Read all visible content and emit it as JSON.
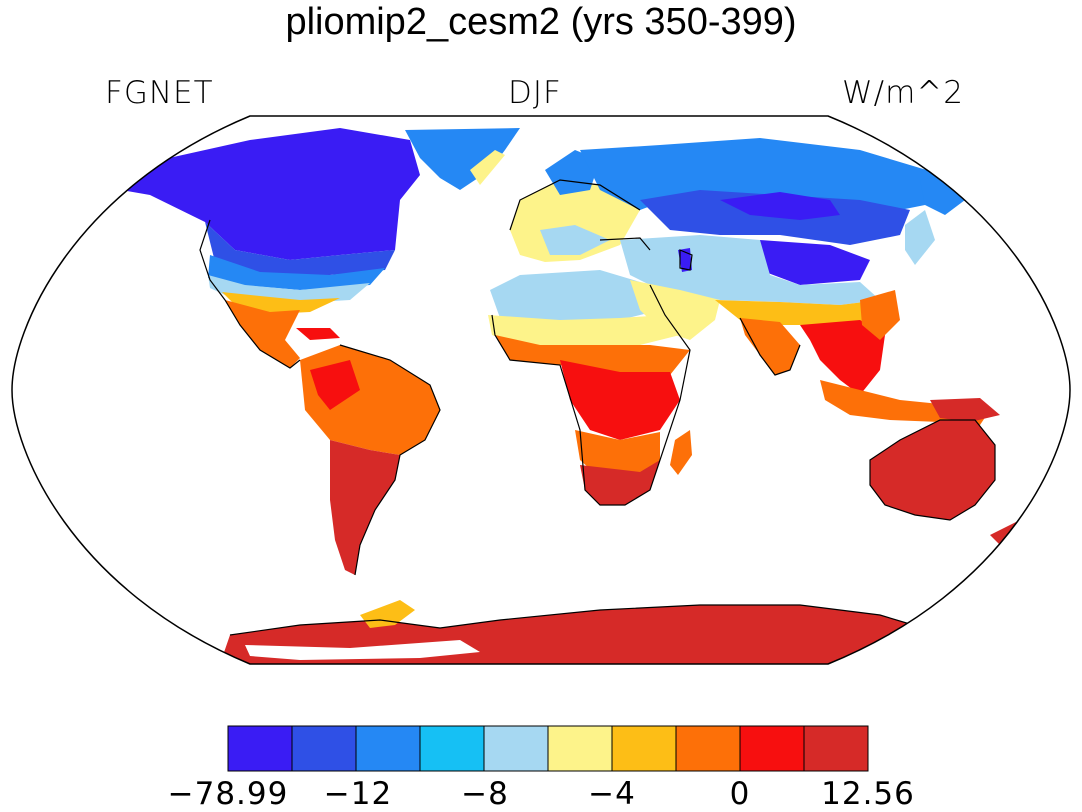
{
  "title": "pliomip2_cesm2 (yrs 350-399)",
  "left_label": "FGNET",
  "center_label": "DJF",
  "right_label": "W/m^2",
  "colorbar": {
    "colors": [
      "#3a1cf4",
      "#2f50e6",
      "#2588f4",
      "#16c0f4",
      "#a6d8f2",
      "#fdf38a",
      "#fdbe16",
      "#fd7008",
      "#f70f0f",
      "#d62a28"
    ],
    "tick_labels": [
      "−78.99",
      "−12",
      "−8",
      "−4",
      "0",
      "12.56"
    ],
    "tick_values": [
      -78.99,
      -12,
      -8,
      -4,
      0,
      12.56
    ]
  },
  "map": {
    "projection": "Robinson",
    "variable": "FGNET",
    "season": "DJF",
    "units": "W/m^2",
    "color_by_region": {
      "canada_arctic": "#3a1cf4",
      "greenland": "#2588f4",
      "usa": "#a6d8f2",
      "mexico_central_america": "#fd7008",
      "south_america_north": "#fd7008",
      "south_america_south": "#d62a28",
      "africa_north": "#a6d8f2",
      "africa_central": "#f70f0f",
      "africa_south": "#d62a28",
      "europe": "#fdf38a",
      "russia_north": "#2f50e6",
      "central_asia": "#a6d8f2",
      "india_se_asia": "#fd7008",
      "australia": "#d62a28",
      "antarctica": "#d62a28"
    }
  }
}
